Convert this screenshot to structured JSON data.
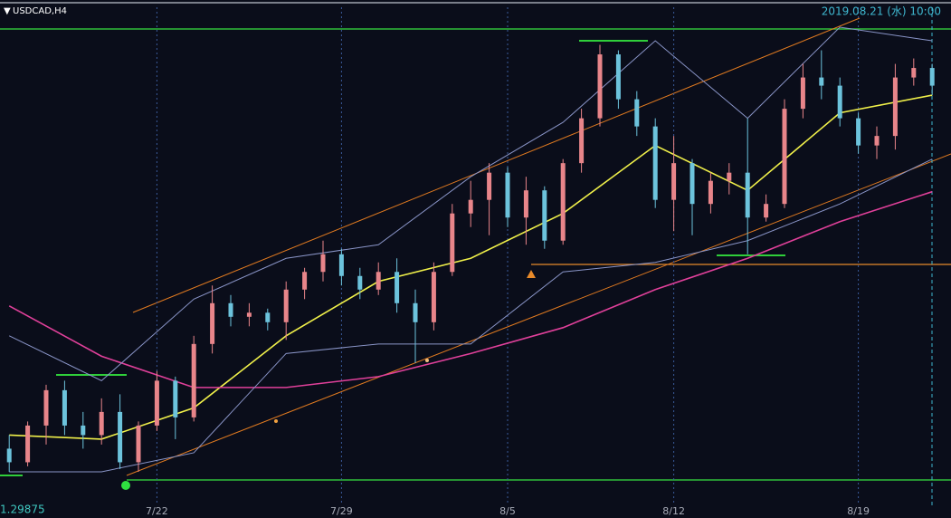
{
  "chart_data": {
    "type": "candlestick",
    "title": "USDCAD,H4",
    "time_label": "2019.08.21 (水) 10:00",
    "price_label": 1.29875,
    "categories": [
      null,
      null,
      null,
      null,
      null,
      null,
      null,
      null,
      "7/22",
      null,
      null,
      null,
      null,
      null,
      null,
      null,
      null,
      null,
      "7/29",
      null,
      null,
      null,
      null,
      null,
      null,
      null,
      null,
      "8/5",
      null,
      null,
      null,
      null,
      null,
      null,
      null,
      null,
      "8/12",
      null,
      null,
      null,
      null,
      null,
      null,
      null,
      null,
      null,
      "8/19",
      null,
      null,
      null,
      null
    ],
    "open": [
      1.304,
      1.303,
      1.3057,
      1.3083,
      1.3057,
      1.305,
      1.3067,
      1.303,
      1.3057,
      1.309,
      1.3063,
      1.3117,
      1.3147,
      1.3137,
      1.314,
      1.3133,
      1.3157,
      1.317,
      1.3183,
      1.3167,
      1.3157,
      1.317,
      1.3147,
      1.3133,
      1.317,
      1.3213,
      1.3223,
      1.3243,
      1.321,
      1.323,
      1.3193,
      1.325,
      1.3283,
      1.333,
      1.3297,
      1.3277,
      1.3223,
      1.325,
      1.322,
      1.3237,
      1.3243,
      1.321,
      1.322,
      1.329,
      1.3313,
      1.3307,
      1.3283,
      1.3263,
      1.327,
      1.3313,
      1.332
    ],
    "high": [
      1.305,
      1.306,
      1.3087,
      1.309,
      1.3067,
      1.3077,
      1.308,
      1.306,
      1.3097,
      1.3093,
      1.3123,
      1.316,
      1.3153,
      1.3147,
      1.3143,
      1.3163,
      1.3173,
      1.3193,
      1.3187,
      1.3173,
      1.3177,
      1.318,
      1.3157,
      1.3177,
      1.322,
      1.3237,
      1.325,
      1.3247,
      1.324,
      1.3233,
      1.3253,
      1.329,
      1.3337,
      1.3333,
      1.3303,
      1.3283,
      1.327,
      1.3253,
      1.3243,
      1.325,
      1.3283,
      1.3227,
      1.3297,
      1.3323,
      1.3333,
      1.3313,
      1.3287,
      1.3277,
      1.3323,
      1.3327,
      1.3323
    ],
    "low": [
      1.3023,
      1.3027,
      1.3043,
      1.305,
      1.304,
      1.3043,
      1.3025,
      1.3023,
      1.3053,
      1.3047,
      1.306,
      1.311,
      1.313,
      1.313,
      1.3127,
      1.312,
      1.315,
      1.3163,
      1.316,
      1.315,
      1.3153,
      1.314,
      1.3103,
      1.3127,
      1.3167,
      1.3203,
      1.3197,
      1.3203,
      1.319,
      1.3187,
      1.319,
      1.3243,
      1.3277,
      1.329,
      1.327,
      1.3217,
      1.32,
      1.3197,
      1.3213,
      1.3227,
      1.3183,
      1.3207,
      1.3217,
      1.3283,
      1.3297,
      1.3277,
      1.3257,
      1.3253,
      1.326,
      1.3307,
      1.33
    ],
    "close": [
      1.303,
      1.3057,
      1.3083,
      1.3057,
      1.305,
      1.3067,
      1.303,
      1.3057,
      1.309,
      1.3063,
      1.3117,
      1.3147,
      1.3137,
      1.314,
      1.3133,
      1.3157,
      1.317,
      1.3183,
      1.3167,
      1.3157,
      1.317,
      1.3147,
      1.3133,
      1.317,
      1.3213,
      1.3223,
      1.3243,
      1.321,
      1.323,
      1.3193,
      1.325,
      1.3283,
      1.333,
      1.3297,
      1.3277,
      1.3223,
      1.325,
      1.322,
      1.3237,
      1.3243,
      1.321,
      1.322,
      1.329,
      1.3313,
      1.3307,
      1.3283,
      1.3263,
      1.327,
      1.3313,
      1.332,
      1.3307
    ],
    "up_color": "#e8858a",
    "down_color": "#6cc3dc",
    "series": [
      {
        "color": "#f0f04a",
        "x": [
          0,
          5,
          10,
          15,
          20,
          25,
          30,
          35,
          40,
          45,
          50
        ],
        "values": [
          1.305,
          1.3047,
          1.307,
          1.3123,
          1.3163,
          1.318,
          1.3213,
          1.3263,
          1.323,
          1.3287,
          1.33
        ]
      },
      {
        "color": "#e0409a",
        "x": [
          0,
          5,
          10,
          15,
          20,
          25,
          30,
          35,
          40,
          45,
          50
        ],
        "values": [
          1.3145,
          1.3108,
          1.3085,
          1.3085,
          1.3093,
          1.311,
          1.3129,
          1.3157,
          1.318,
          1.3207,
          1.3229
        ]
      },
      {
        "color": "#8a95c8",
        "x": [
          0,
          5,
          10,
          15,
          20,
          25,
          30,
          35,
          40,
          45,
          50
        ],
        "values": [
          1.3123,
          1.309,
          1.315,
          1.318,
          1.319,
          1.324,
          1.328,
          1.334,
          1.3283,
          1.335,
          1.334
        ]
      },
      {
        "color": "#8a95c8",
        "x": [
          0,
          5,
          10,
          15,
          20,
          25,
          30,
          35,
          40,
          45,
          50
        ],
        "values": [
          1.3023,
          1.3023,
          1.3037,
          1.311,
          1.3117,
          1.3117,
          1.317,
          1.3177,
          1.3193,
          1.322,
          1.3253
        ]
      }
    ],
    "ylim": [
      1.2989,
      1.337
    ],
    "grid": true
  }
}
